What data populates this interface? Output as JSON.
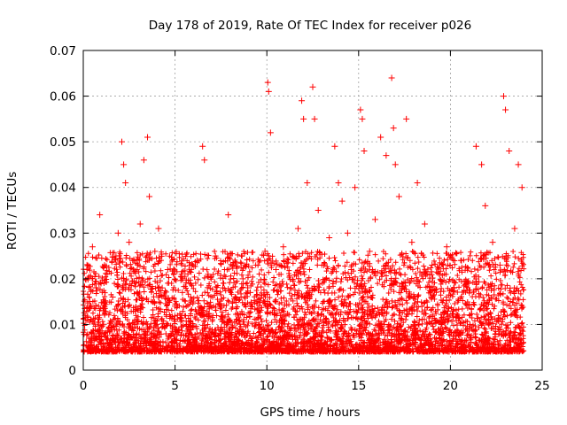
{
  "chart_data": {
    "type": "scatter",
    "title": "Day 178 of 2019, Rate Of TEC Index for receiver p026",
    "xlabel": "GPS time / hours",
    "ylabel": "ROTI / TECUs",
    "xlim": [
      0,
      25
    ],
    "ylim": [
      0,
      0.07
    ],
    "xticks": [
      0,
      5,
      10,
      15,
      20,
      25
    ],
    "yticks": [
      0,
      0.01,
      0.02,
      0.03,
      0.04,
      0.05,
      0.06,
      0.07
    ],
    "xtick_labels": [
      "0",
      "5",
      "10",
      "15",
      "20",
      "25"
    ],
    "ytick_labels": [
      "0",
      "0.01",
      "0.02",
      "0.03",
      "0.04",
      "0.05",
      "0.06",
      "0.07"
    ],
    "grid": true,
    "marker": "+",
    "color": "#ff0000",
    "series": [
      {
        "x": [
          0.1,
          0.2,
          0.35,
          0.5,
          0.7,
          0.9,
          1.1,
          1.3,
          1.6,
          1.9,
          2.1,
          2.2,
          2.3,
          2.5,
          2.8,
          3.1,
          3.3,
          3.5,
          3.6,
          3.9,
          4.1,
          4.3,
          4.6,
          5.0,
          5.4,
          5.8,
          6.2,
          6.5,
          6.6,
          6.8,
          7.2,
          7.6,
          7.9,
          8.3,
          8.7,
          9.1,
          9.5,
          9.9,
          10.05,
          10.1,
          10.2,
          10.5,
          10.9,
          11.3,
          11.7,
          11.9,
          12.0,
          12.2,
          12.5,
          12.6,
          12.8,
          13.1,
          13.4,
          13.7,
          13.9,
          14.1,
          14.4,
          14.6,
          14.8,
          15.1,
          15.2,
          15.3,
          15.6,
          15.9,
          16.2,
          16.5,
          16.8,
          16.9,
          17.0,
          17.2,
          17.6,
          17.9,
          18.2,
          18.6,
          19.0,
          19.4,
          19.8,
          20.2,
          20.6,
          21.0,
          21.4,
          21.7,
          21.9,
          22.3,
          22.7,
          22.9,
          23.0,
          23.2,
          23.5,
          23.7,
          23.9
        ],
        "y": [
          0.012,
          0.022,
          0.015,
          0.027,
          0.018,
          0.034,
          0.013,
          0.021,
          0.016,
          0.03,
          0.05,
          0.045,
          0.041,
          0.028,
          0.019,
          0.032,
          0.046,
          0.051,
          0.038,
          0.026,
          0.031,
          0.018,
          0.022,
          0.014,
          0.017,
          0.019,
          0.024,
          0.049,
          0.046,
          0.021,
          0.025,
          0.018,
          0.034,
          0.016,
          0.02,
          0.017,
          0.015,
          0.026,
          0.063,
          0.061,
          0.052,
          0.022,
          0.027,
          0.018,
          0.031,
          0.059,
          0.055,
          0.041,
          0.062,
          0.055,
          0.035,
          0.023,
          0.029,
          0.049,
          0.041,
          0.037,
          0.03,
          0.022,
          0.04,
          0.057,
          0.055,
          0.048,
          0.026,
          0.033,
          0.051,
          0.047,
          0.064,
          0.053,
          0.045,
          0.038,
          0.055,
          0.028,
          0.041,
          0.032,
          0.023,
          0.021,
          0.027,
          0.018,
          0.024,
          0.019,
          0.049,
          0.045,
          0.036,
          0.028,
          0.023,
          0.06,
          0.057,
          0.048,
          0.031,
          0.045,
          0.04
        ]
      }
    ]
  }
}
